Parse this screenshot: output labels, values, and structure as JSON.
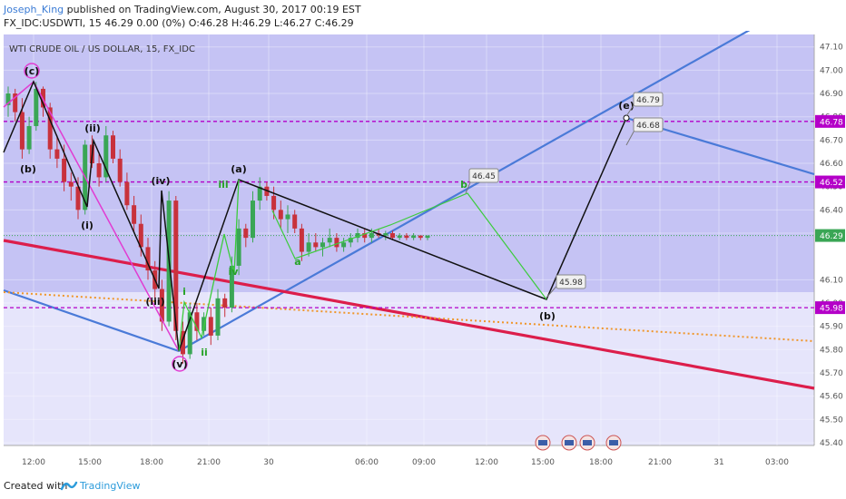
{
  "header": {
    "author": "Joseph_King",
    "publish_text": " published on TradingView.com, August 30, 2017 00:19 EST",
    "ohlc_line": "FX_IDC:USDWTI, 15  46.29 0.00 (0%) O:46.28 H:46.29 L:46.27 C:46.29"
  },
  "footer": {
    "created_with": "Created with",
    "brand": "TradingView"
  },
  "colors": {
    "background_upper": "#c5c3f4",
    "background_lower": "#e6e5fb",
    "trend_blue": "#4a7ad8",
    "trend_red": "#dc1e4b",
    "dotted_orange": "#f0962a",
    "level_purple": "#b400c8",
    "wave_green": "#3ccc3c",
    "wave_magenta": "#e13cd2",
    "candle_up": "#3aa655",
    "candle_down": "#c8323c"
  },
  "chart_data": {
    "type": "candlestick",
    "title": "WTI CRUDE OIL / US DOLLAR, 15, FX_IDC",
    "y_axis": {
      "range": [
        45.33,
        47.15
      ],
      "tick_labels": [
        "47.10",
        "47.00",
        "46.90",
        "46.80",
        "46.70",
        "46.60",
        "46.50",
        "46.40",
        "46.30",
        "46.10",
        "46.00",
        "45.90",
        "45.80",
        "45.70",
        "45.60",
        "45.50",
        "45.40"
      ],
      "tick_values": [
        47.1,
        47.0,
        46.9,
        46.8,
        46.7,
        46.6,
        46.5,
        46.4,
        46.3,
        46.1,
        46.0,
        45.9,
        45.8,
        45.7,
        45.6,
        45.5,
        45.4
      ]
    },
    "x_axis": {
      "tick_labels": [
        "12:00",
        "15:00",
        "18:00",
        "21:00",
        "30",
        "06:00",
        "09:00",
        "12:00",
        "15:00",
        "18:00",
        "21:00",
        "31",
        "03:00"
      ]
    },
    "last_price": {
      "label": "46.29",
      "value": 46.29
    },
    "levels": [
      {
        "label": "46.78",
        "value": 46.78
      },
      {
        "label": "46.52",
        "value": 46.52
      },
      {
        "label": "45.98",
        "value": 45.98
      }
    ],
    "callouts": [
      {
        "label": "46.45",
        "value": 46.45
      },
      {
        "label": "45.98",
        "value": 45.98
      },
      {
        "label": "46.79",
        "value": 46.79
      },
      {
        "label": "46.68",
        "value": 46.68
      }
    ],
    "wave_labels": [
      "(c)",
      "(b)",
      "(ii)",
      "(i)",
      "(iv)",
      "(iii)",
      "(v)",
      "(a)",
      "iii",
      "iv",
      "i",
      "ii",
      "a",
      "b",
      "(b)",
      "(e)"
    ],
    "candles": [
      [
        46.85,
        46.93,
        46.8,
        46.9
      ],
      [
        46.9,
        46.92,
        46.78,
        46.82
      ],
      [
        46.82,
        46.88,
        46.62,
        46.66
      ],
      [
        46.66,
        46.8,
        46.64,
        46.76
      ],
      [
        46.76,
        46.95,
        46.74,
        46.92
      ],
      [
        46.92,
        46.93,
        46.8,
        46.84
      ],
      [
        46.84,
        46.86,
        46.62,
        46.66
      ],
      [
        46.66,
        46.72,
        46.58,
        46.62
      ],
      [
        46.62,
        46.68,
        46.48,
        46.52
      ],
      [
        46.52,
        46.56,
        46.44,
        46.5
      ],
      [
        46.5,
        46.54,
        46.36,
        46.4
      ],
      [
        46.4,
        46.7,
        46.38,
        46.68
      ],
      [
        46.68,
        46.72,
        46.58,
        46.6
      ],
      [
        46.6,
        46.64,
        46.5,
        46.54
      ],
      [
        46.54,
        46.76,
        46.52,
        46.72
      ],
      [
        46.72,
        46.74,
        46.6,
        46.62
      ],
      [
        46.62,
        46.66,
        46.5,
        46.52
      ],
      [
        46.52,
        46.56,
        46.4,
        46.42
      ],
      [
        46.42,
        46.46,
        46.3,
        46.34
      ],
      [
        46.34,
        46.38,
        46.2,
        46.24
      ],
      [
        46.24,
        46.28,
        46.1,
        46.14
      ],
      [
        46.14,
        46.18,
        46.0,
        46.06
      ],
      [
        46.06,
        46.1,
        45.88,
        45.92
      ],
      [
        45.92,
        46.48,
        45.9,
        46.44
      ],
      [
        46.44,
        46.46,
        45.84,
        45.88
      ],
      [
        45.88,
        45.92,
        45.74,
        45.78
      ],
      [
        45.78,
        46.0,
        45.76,
        45.96
      ],
      [
        45.96,
        46.0,
        45.84,
        45.88
      ],
      [
        45.88,
        45.96,
        45.86,
        45.94
      ],
      [
        45.94,
        45.98,
        45.82,
        45.86
      ],
      [
        45.86,
        46.06,
        45.84,
        46.02
      ],
      [
        46.02,
        46.04,
        45.94,
        45.98
      ],
      [
        45.98,
        46.2,
        45.96,
        46.16
      ],
      [
        46.16,
        46.36,
        46.12,
        46.32
      ],
      [
        46.32,
        46.34,
        46.24,
        46.28
      ],
      [
        46.28,
        46.48,
        46.26,
        46.44
      ],
      [
        46.44,
        46.54,
        46.4,
        46.5
      ],
      [
        46.5,
        46.52,
        46.44,
        46.46
      ],
      [
        46.46,
        46.5,
        46.36,
        46.4
      ],
      [
        46.4,
        46.44,
        46.32,
        46.36
      ],
      [
        46.36,
        46.42,
        46.3,
        46.38
      ],
      [
        46.38,
        46.4,
        46.3,
        46.32
      ],
      [
        46.32,
        46.34,
        46.18,
        46.22
      ],
      [
        46.22,
        46.3,
        46.2,
        46.26
      ],
      [
        46.26,
        46.3,
        46.22,
        46.24
      ],
      [
        46.24,
        46.28,
        46.2,
        46.26
      ],
      [
        46.26,
        46.32,
        46.24,
        46.28
      ],
      [
        46.28,
        46.3,
        46.22,
        46.24
      ],
      [
        46.24,
        46.28,
        46.22,
        46.26
      ],
      [
        46.26,
        46.3,
        46.24,
        46.28
      ],
      [
        46.28,
        46.32,
        46.26,
        46.3
      ],
      [
        46.3,
        46.32,
        46.26,
        46.28
      ],
      [
        46.28,
        46.32,
        46.26,
        46.3
      ],
      [
        46.3,
        46.32,
        46.28,
        46.29
      ],
      [
        46.29,
        46.31,
        46.27,
        46.3
      ],
      [
        46.3,
        46.31,
        46.27,
        46.28
      ],
      [
        46.28,
        46.3,
        46.27,
        46.29
      ],
      [
        46.29,
        46.3,
        46.27,
        46.28
      ],
      [
        46.28,
        46.3,
        46.27,
        46.29
      ],
      [
        46.29,
        46.29,
        46.27,
        46.28
      ],
      [
        46.28,
        46.29,
        46.27,
        46.29
      ]
    ]
  }
}
